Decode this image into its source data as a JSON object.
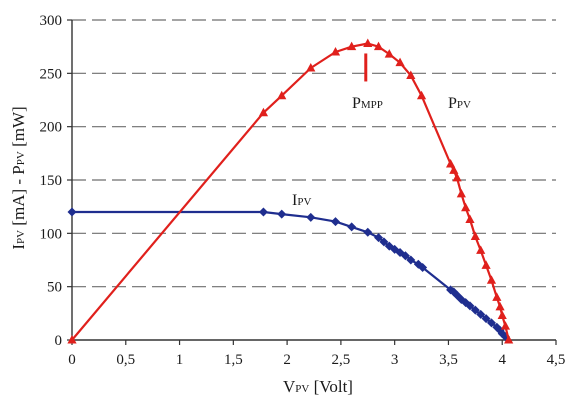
{
  "chart_data": {
    "type": "line",
    "xlabel": {
      "main": "V",
      "sub": "PV",
      "rest": " [Volt]"
    },
    "ylabel": {
      "p1": "I",
      "s1": "PV",
      "p2": " [mA] - P",
      "s2": "PV",
      "p3": " [mW]"
    },
    "xlim": [
      0,
      4.5
    ],
    "ylim": [
      0,
      300
    ],
    "x_ticks": [
      {
        "value": 0,
        "label": "0"
      },
      {
        "value": 0.5,
        "label": "0,5"
      },
      {
        "value": 1,
        "label": "1"
      },
      {
        "value": 1.5,
        "label": "1,5"
      },
      {
        "value": 2,
        "label": "2"
      },
      {
        "value": 2.5,
        "label": "2,5"
      },
      {
        "value": 3,
        "label": "3"
      },
      {
        "value": 3.5,
        "label": "3,5"
      },
      {
        "value": 4,
        "label": "4"
      },
      {
        "value": 4.5,
        "label": "4,5"
      }
    ],
    "y_ticks": [
      {
        "value": 0,
        "label": "0"
      },
      {
        "value": 50,
        "label": "50"
      },
      {
        "value": 100,
        "label": "100"
      },
      {
        "value": 150,
        "label": "150"
      },
      {
        "value": 200,
        "label": "200"
      },
      {
        "value": 250,
        "label": "250"
      },
      {
        "value": 300,
        "label": "300"
      }
    ],
    "grid": {
      "horizontal": true,
      "style": "dashed"
    },
    "series": [
      {
        "name": {
          "main": "I",
          "sub": "PV"
        },
        "color": "#1f2e8f",
        "marker": "diamond",
        "line_points": [
          [
            0,
            120
          ],
          [
            1.78,
            120
          ]
        ],
        "points": [
          [
            1.78,
            120
          ],
          [
            1.95,
            118
          ],
          [
            2.22,
            115
          ],
          [
            2.45,
            111
          ],
          [
            2.6,
            106
          ],
          [
            2.75,
            101
          ],
          [
            2.85,
            96
          ],
          [
            2.9,
            92
          ],
          [
            2.95,
            88
          ],
          [
            3.0,
            85
          ],
          [
            3.05,
            82
          ],
          [
            3.1,
            79
          ],
          [
            3.15,
            75
          ],
          [
            3.22,
            71
          ],
          [
            3.26,
            68
          ],
          [
            3.52,
            47
          ],
          [
            3.55,
            45
          ],
          [
            3.58,
            42
          ],
          [
            3.62,
            38
          ],
          [
            3.66,
            35
          ],
          [
            3.7,
            32
          ],
          [
            3.75,
            28
          ],
          [
            3.8,
            24
          ],
          [
            3.85,
            20
          ],
          [
            3.9,
            16
          ],
          [
            3.95,
            12
          ],
          [
            3.98,
            9
          ],
          [
            4.0,
            6
          ],
          [
            4.03,
            3
          ]
        ]
      },
      {
        "name": {
          "main": "P",
          "sub": "PV"
        },
        "color": "#e0201c",
        "marker": "triangle",
        "line_points": [
          [
            0,
            0
          ],
          [
            1.78,
            213
          ]
        ],
        "points": [
          [
            1.78,
            213
          ],
          [
            1.95,
            229
          ],
          [
            2.22,
            255
          ],
          [
            2.45,
            270
          ],
          [
            2.6,
            275
          ],
          [
            2.75,
            278
          ],
          [
            2.85,
            275
          ],
          [
            2.95,
            268
          ],
          [
            3.05,
            260
          ],
          [
            3.15,
            248
          ],
          [
            3.25,
            229
          ],
          [
            3.52,
            165
          ],
          [
            3.55,
            159
          ],
          [
            3.58,
            152
          ],
          [
            3.62,
            137
          ],
          [
            3.66,
            124
          ],
          [
            3.7,
            113
          ],
          [
            3.75,
            97
          ],
          [
            3.8,
            84
          ],
          [
            3.85,
            70
          ],
          [
            3.9,
            56
          ],
          [
            3.95,
            40
          ],
          [
            3.98,
            31
          ],
          [
            4.0,
            23
          ],
          [
            4.03,
            13
          ],
          [
            4.06,
            0
          ]
        ]
      }
    ],
    "annotations": [
      {
        "text": {
          "main": "P",
          "sub": "MPP"
        },
        "x": 2.75,
        "y": 278
      }
    ]
  }
}
